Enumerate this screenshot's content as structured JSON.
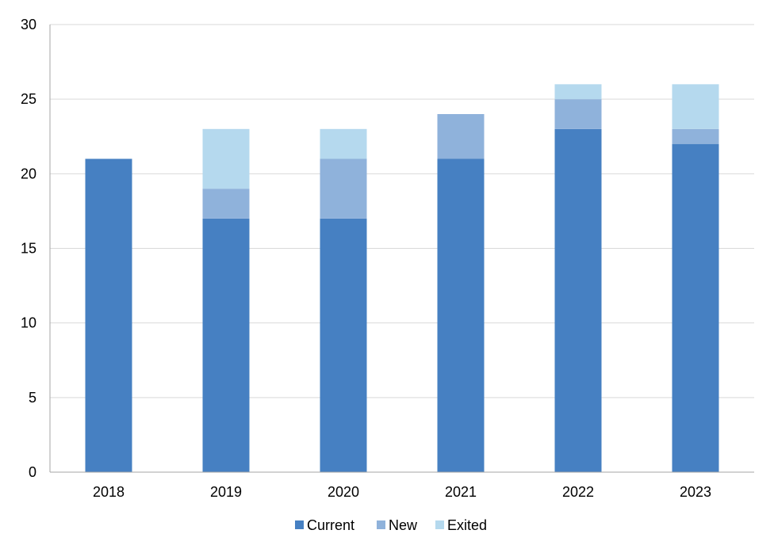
{
  "chart_data": {
    "type": "bar",
    "stacked": true,
    "categories": [
      "2018",
      "2019",
      "2020",
      "2021",
      "2022",
      "2023"
    ],
    "series": [
      {
        "name": "Current",
        "color": "#4680C2",
        "values": [
          21,
          17,
          17,
          21,
          23,
          22
        ]
      },
      {
        "name": "New",
        "color": "#8FB2DB",
        "values": [
          0,
          2,
          4,
          3,
          2,
          1
        ]
      },
      {
        "name": "Exited",
        "color": "#B5D9EE",
        "values": [
          0,
          4,
          2,
          0,
          1,
          3
        ]
      }
    ],
    "ylim": [
      0,
      30
    ],
    "yticks": [
      0,
      5,
      10,
      15,
      20,
      25,
      30
    ],
    "ytick_labels": [
      "0",
      "5",
      "10",
      "15",
      "20",
      "25",
      "30"
    ],
    "grid": true,
    "legend_position": "bottom"
  }
}
